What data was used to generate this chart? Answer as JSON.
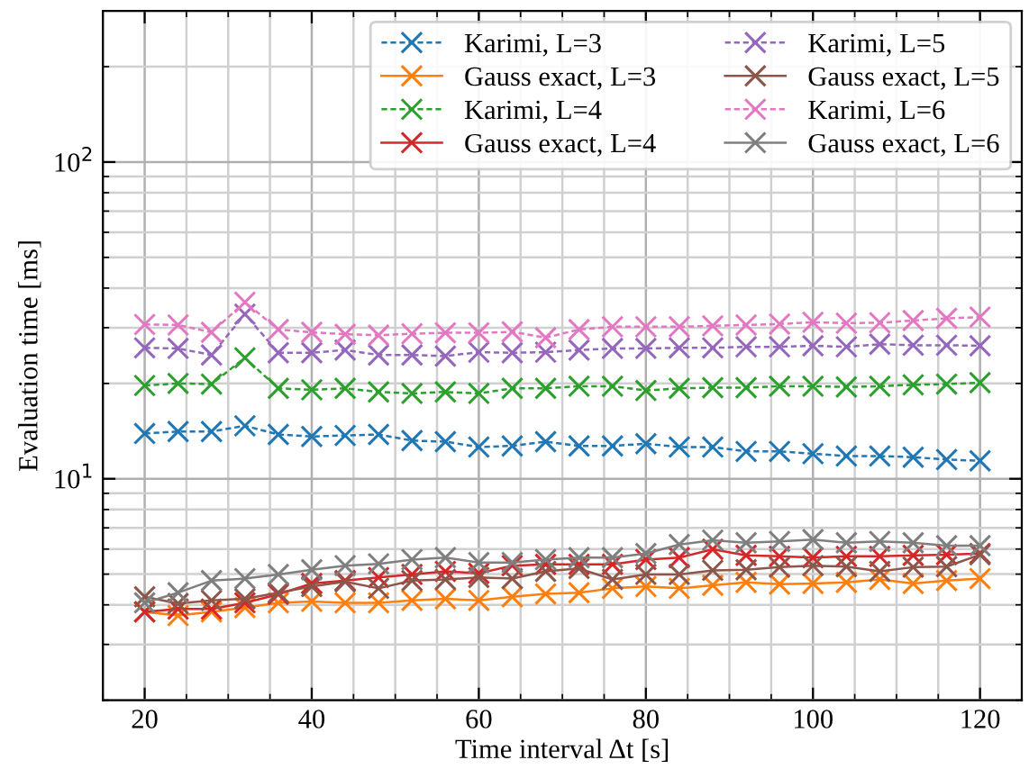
{
  "chart_data": {
    "type": "line",
    "xlabel": "Time interval Δt [s]",
    "ylabel": "Evaluation time [ms]",
    "x": [
      20,
      24,
      28,
      32,
      36,
      40,
      44,
      48,
      52,
      56,
      60,
      64,
      68,
      72,
      76,
      80,
      84,
      88,
      92,
      96,
      100,
      104,
      108,
      112,
      116,
      120
    ],
    "xlim": [
      15,
      125
    ],
    "xticks": [
      20,
      40,
      60,
      80,
      100,
      120
    ],
    "ylim": [
      2,
      300
    ],
    "yticks": [
      {
        "value": 10,
        "label": "10$^{1}$"
      },
      {
        "value": 100,
        "label": "10$^{2}$"
      }
    ],
    "log": "y",
    "grid": true,
    "legend": "top right",
    "marker": "cross",
    "series": [
      {
        "name": "Karimi, L=3",
        "color": "#1f77b4",
        "line_style": "dashed",
        "values": [
          13.9,
          14.1,
          14.1,
          14.7,
          13.8,
          13.6,
          13.7,
          13.8,
          13.2,
          13.1,
          12.6,
          12.7,
          13.1,
          12.7,
          12.7,
          12.9,
          12.6,
          12.6,
          12.2,
          12.2,
          12.0,
          11.8,
          11.8,
          11.7,
          11.5,
          11.4
        ]
      },
      {
        "name": "Gauss exact, L=3",
        "color": "#ff7f0e",
        "line_style": "solid",
        "values": [
          3.8,
          3.7,
          3.8,
          3.92,
          4.06,
          4.1,
          4.06,
          4.06,
          4.13,
          4.18,
          4.13,
          4.24,
          4.33,
          4.37,
          4.51,
          4.57,
          4.51,
          4.61,
          4.71,
          4.65,
          4.67,
          4.71,
          4.81,
          4.67,
          4.77,
          4.84
        ]
      },
      {
        "name": "Karimi, L=4",
        "color": "#2ca02c",
        "line_style": "dashed",
        "values": [
          19.7,
          20.0,
          19.9,
          24.1,
          19.3,
          19.1,
          19.3,
          18.8,
          18.6,
          18.8,
          18.6,
          19.3,
          19.3,
          19.6,
          19.6,
          19.0,
          19.3,
          19.4,
          19.4,
          19.6,
          19.6,
          19.5,
          19.6,
          19.8,
          19.9,
          20.1
        ]
      },
      {
        "name": "Gauss exact, L=4",
        "color": "#d62728",
        "line_style": "solid",
        "values": [
          3.8,
          3.88,
          3.88,
          4.06,
          4.32,
          4.67,
          4.77,
          4.88,
          4.99,
          5.1,
          5.03,
          5.32,
          5.37,
          5.37,
          5.37,
          5.56,
          5.64,
          5.99,
          5.73,
          5.69,
          5.64,
          5.69,
          5.69,
          5.73,
          5.76,
          5.81
        ]
      },
      {
        "name": "Karimi, L=5",
        "color": "#9467bd",
        "line_style": "dashed",
        "values": [
          25.9,
          25.8,
          24.6,
          33.1,
          25.0,
          25.0,
          25.5,
          24.6,
          24.6,
          24.4,
          25.1,
          25.0,
          25.1,
          25.5,
          25.8,
          25.8,
          25.9,
          25.9,
          26.1,
          26.1,
          26.3,
          26.1,
          26.6,
          26.4,
          26.4,
          26.3
        ]
      },
      {
        "name": "Gauss exact, L=5",
        "color": "#8c564b",
        "line_style": "solid",
        "values": [
          4.24,
          4.04,
          4.13,
          4.18,
          4.37,
          4.57,
          4.73,
          4.51,
          4.77,
          4.81,
          4.88,
          4.84,
          5.1,
          5.21,
          4.81,
          4.99,
          4.99,
          5.14,
          5.16,
          5.26,
          5.32,
          5.28,
          5.1,
          5.26,
          5.28,
          5.76
        ]
      },
      {
        "name": "Karimi, L=6",
        "color": "#e377c2",
        "line_style": "dashed",
        "values": [
          30.7,
          30.6,
          29.0,
          36.1,
          29.6,
          29.0,
          28.6,
          28.4,
          28.7,
          28.9,
          28.9,
          29.1,
          27.9,
          29.6,
          30.2,
          30.2,
          30.2,
          30.4,
          30.6,
          30.8,
          31.2,
          31.0,
          31.1,
          31.6,
          32.1,
          32.4
        ]
      },
      {
        "name": "Gauss exact, L=6",
        "color": "#7f7f7f",
        "line_style": "solid",
        "values": [
          4.06,
          4.37,
          4.77,
          4.84,
          4.99,
          5.16,
          5.32,
          5.39,
          5.56,
          5.64,
          5.44,
          5.44,
          5.56,
          5.64,
          5.64,
          5.81,
          6.2,
          6.4,
          6.28,
          6.34,
          6.43,
          6.28,
          6.34,
          6.28,
          6.15,
          6.15
        ]
      }
    ]
  }
}
